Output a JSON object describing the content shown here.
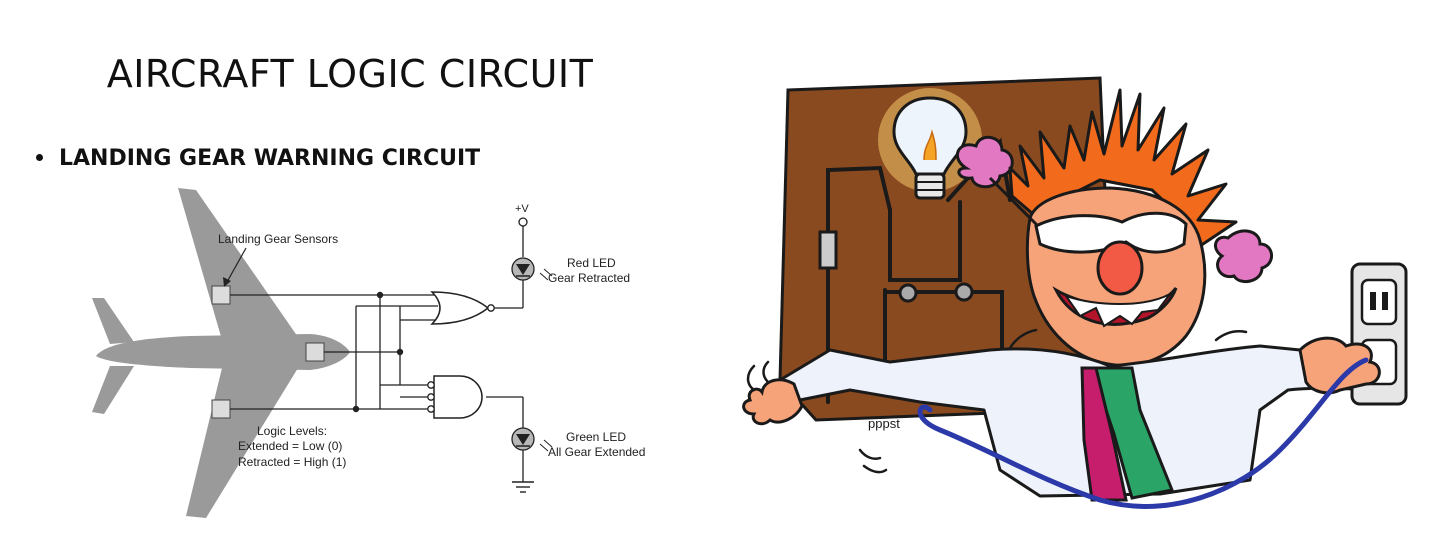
{
  "slide": {
    "title": "AIRCRAFT LOGIC CIRCUIT",
    "bullet": "LANDING GEAR WARNING CIRCUIT"
  },
  "circuit": {
    "voltage_label": "+V",
    "sensors_label": "Landing Gear Sensors",
    "red_led_line1": "Red LED",
    "red_led_line2": "Gear Retracted",
    "green_led_line1": "Green LED",
    "green_led_line2": "All Gear Extended",
    "logic_levels_title": "Logic Levels:",
    "logic_extended": "Extended = Low (0)",
    "logic_retracted": "Retracted = High (1)",
    "colors": {
      "plane": "#9a9a9a",
      "wire": "#222222",
      "sensor": "#dcdcdc"
    }
  },
  "cartoon": {
    "signature": "pppst",
    "colors": {
      "board": "#8a4a1f",
      "hair": "#f26a1b",
      "face": "#f7a37a",
      "tie_green": "#2aa567",
      "tie_pink": "#c71d6d",
      "cord": "#2b3aa8"
    }
  }
}
